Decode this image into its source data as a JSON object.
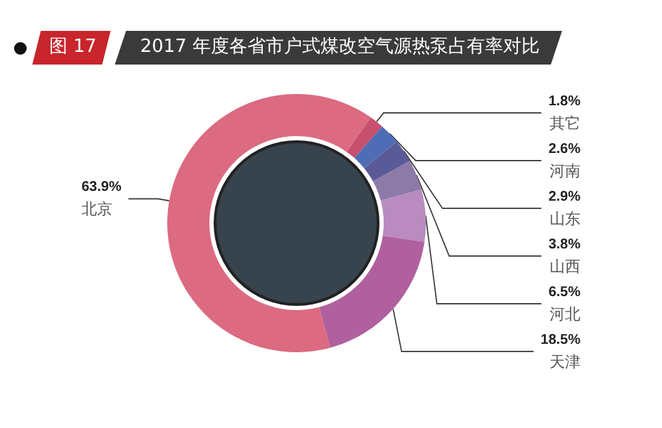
{
  "chart_data": {
    "type": "donut",
    "title": "2017 年度各省市户式煤改空气源热泵占有率对比",
    "annotations": [
      "图 17"
    ],
    "categories": [
      "其它",
      "河南",
      "山东",
      "山西",
      "河北",
      "天津",
      "北京"
    ],
    "values": [
      1.8,
      2.6,
      2.9,
      3.8,
      6.5,
      18.5,
      63.9
    ],
    "value_labels": [
      "1.8%",
      "2.6%",
      "2.9%",
      "3.8%",
      "6.5%",
      "18.5%",
      "63.9%"
    ],
    "colors": [
      "#c8506e",
      "#4f6db5",
      "#5b5a98",
      "#8c7aa8",
      "#b98bc0",
      "#b0609e",
      "#dc6a80"
    ],
    "legend": false
  }
}
